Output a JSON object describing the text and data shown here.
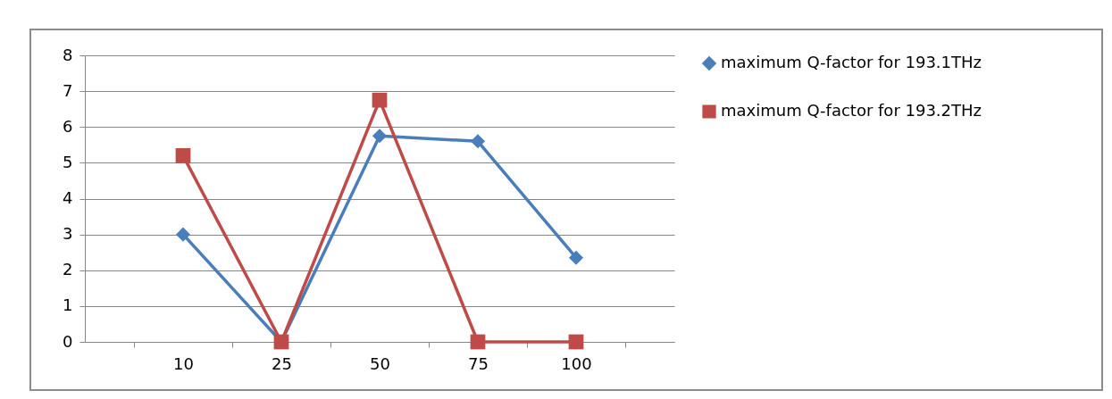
{
  "chart_data": {
    "type": "line",
    "categories": [
      "10",
      "25",
      "50",
      "75",
      "100"
    ],
    "series": [
      {
        "name": "maximum Q-factor for 193.1THz",
        "color": "#4a7ebb",
        "marker": "diamond",
        "values": [
          3,
          0,
          5.75,
          5.6,
          2.35
        ]
      },
      {
        "name": "maximum Q-factor for 193.2THz",
        "color": "#be4b48",
        "marker": "square",
        "values": [
          5.2,
          0,
          6.75,
          0,
          0
        ]
      }
    ],
    "ylim": [
      0,
      8
    ],
    "yticks": [
      0,
      1,
      2,
      3,
      4,
      5,
      6,
      7,
      8
    ],
    "grid": "y",
    "legend": "right",
    "line_style": "solid"
  }
}
